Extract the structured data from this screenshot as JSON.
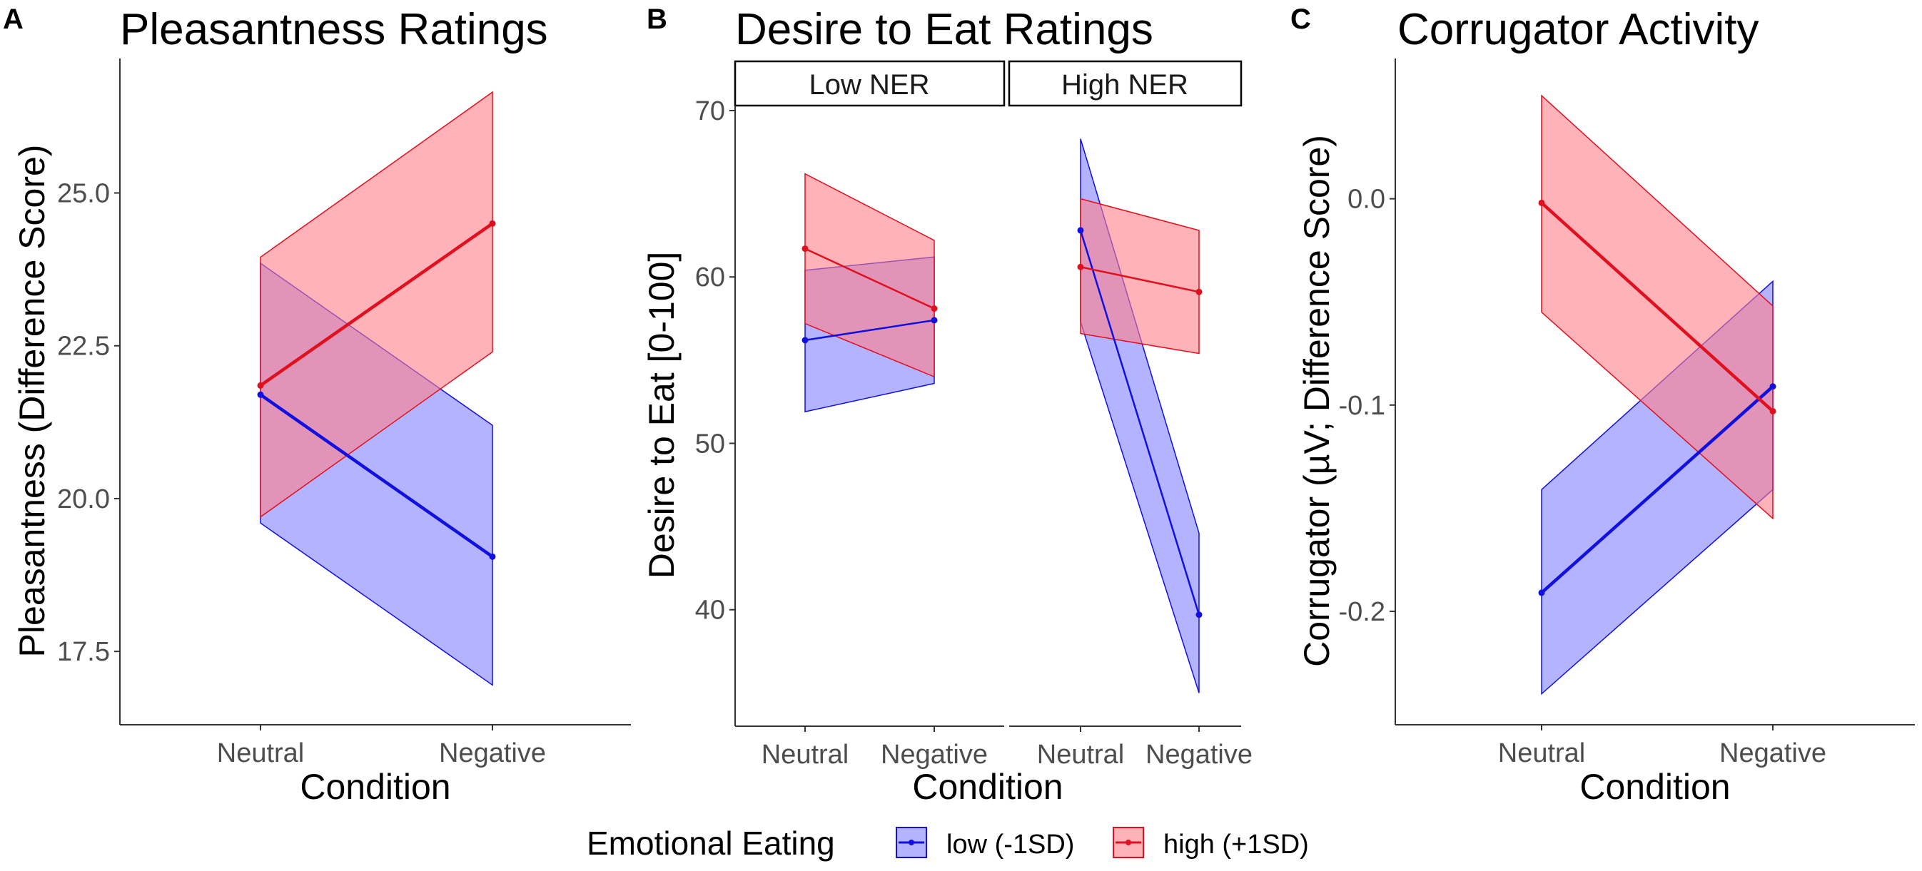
{
  "legend": {
    "title": "Emotional Eating",
    "items": [
      {
        "label": "low (-1SD)",
        "color": "#1010e0",
        "fill": "#8080ff"
      },
      {
        "label": "high (+1SD)",
        "color": "#e0101e",
        "fill": "#ff7f88"
      }
    ]
  },
  "chart_data": [
    {
      "panel": "A",
      "type": "line",
      "title": "Pleasantness Ratings",
      "xlabel": "Condition",
      "ylabel": "Pleasantness (Difference Score)",
      "categories": [
        "Neutral",
        "Negative"
      ],
      "ylim": [
        16.3,
        27.2
      ],
      "yticks": [
        17.5,
        20.0,
        22.5,
        25.0
      ],
      "ytick_labels": [
        "17.5",
        "20.0",
        "22.5",
        "25.0"
      ],
      "series": [
        {
          "name": "low (-1SD)",
          "values": [
            21.7,
            19.05
          ],
          "lower": [
            19.6,
            16.95
          ],
          "upper": [
            23.85,
            21.2
          ]
        },
        {
          "name": "high (+1SD)",
          "values": [
            21.85,
            24.5
          ],
          "lower": [
            19.7,
            22.4
          ],
          "upper": [
            23.95,
            26.65
          ]
        }
      ]
    },
    {
      "panel": "B",
      "type": "line",
      "title": "Desire to Eat Ratings",
      "xlabel": "Condition",
      "ylabel": "Desire to Eat [0-100]",
      "ylim": [
        33,
        70.3
      ],
      "yticks": [
        40,
        50,
        60,
        70
      ],
      "ytick_labels": [
        "40",
        "50",
        "60",
        "70"
      ],
      "facets": [
        {
          "label": "Low NER",
          "categories": [
            "Neutral",
            "Negative"
          ],
          "series": [
            {
              "name": "low (-1SD)",
              "values": [
                56.2,
                57.4
              ],
              "lower": [
                51.9,
                53.6
              ],
              "upper": [
                60.4,
                61.2
              ]
            },
            {
              "name": "high (+1SD)",
              "values": [
                61.7,
                58.1
              ],
              "lower": [
                57.2,
                54.0
              ],
              "upper": [
                66.2,
                62.2
              ]
            }
          ]
        },
        {
          "label": "High NER",
          "categories": [
            "Neutral",
            "Negative"
          ],
          "series": [
            {
              "name": "low (-1SD)",
              "values": [
                62.8,
                39.7
              ],
              "lower": [
                57.3,
                35.0
              ],
              "upper": [
                68.3,
                44.6
              ]
            },
            {
              "name": "high (+1SD)",
              "values": [
                60.6,
                59.1
              ],
              "lower": [
                56.6,
                55.4
              ],
              "upper": [
                64.7,
                62.8
              ]
            }
          ]
        }
      ]
    },
    {
      "panel": "C",
      "type": "line",
      "title": "Corrugator Activity",
      "xlabel": "Condition",
      "ylabel": "Corrugator (µV; Difference Score)",
      "categories": [
        "Neutral",
        "Negative"
      ],
      "ylim": [
        -0.255,
        0.068
      ],
      "yticks": [
        -0.2,
        -0.1,
        0.0
      ],
      "ytick_labels": [
        "-0.2",
        "-0.1",
        "0.0"
      ],
      "series": [
        {
          "name": "low (-1SD)",
          "values": [
            -0.191,
            -0.091
          ],
          "lower": [
            -0.24,
            -0.141
          ],
          "upper": [
            -0.141,
            -0.04
          ]
        },
        {
          "name": "high (+1SD)",
          "values": [
            -0.002,
            -0.103
          ],
          "lower": [
            -0.055,
            -0.155
          ],
          "upper": [
            0.05,
            -0.052
          ]
        }
      ]
    }
  ]
}
